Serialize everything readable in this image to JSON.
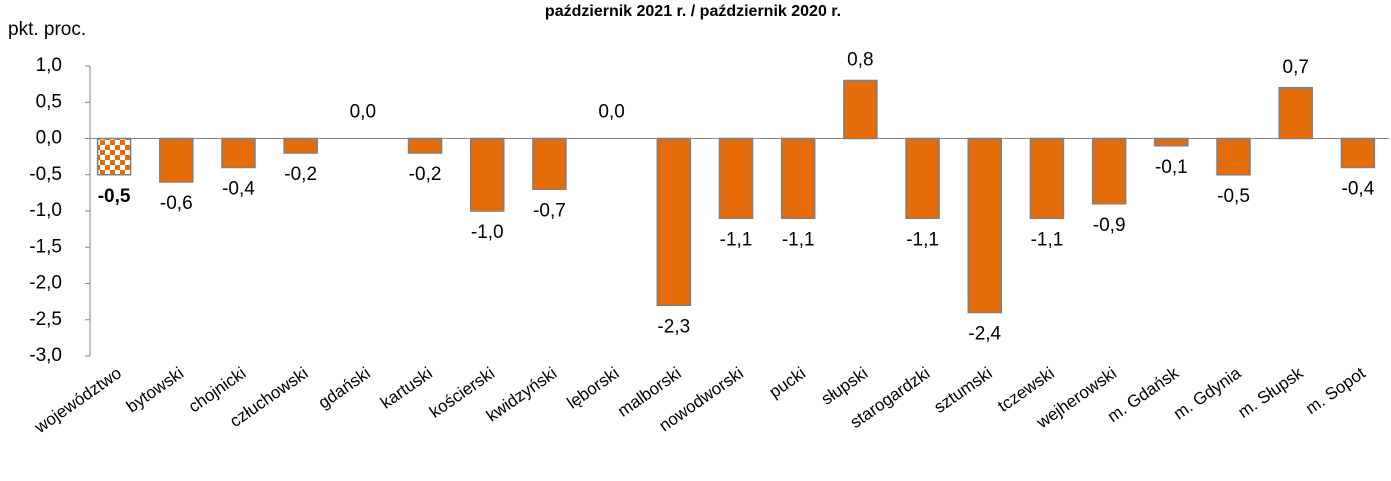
{
  "chart_data": {
    "type": "bar",
    "title": "październik 2021 r. / październik 2020 r.",
    "y_label": "pkt. proc.",
    "categories": [
      "województwo",
      "bytowski",
      "chojnicki",
      "człuchowski",
      "gdański",
      "kartuski",
      "kościerski",
      "kwidzyński",
      "lęborski",
      "malborski",
      "nowodworski",
      "pucki",
      "słupski",
      "starogardzki",
      "sztumski",
      "tczewski",
      "wejherowski",
      "m. Gdańsk",
      "m. Gdynia",
      "m. Słupsk",
      "m. Sopot"
    ],
    "values": [
      -0.5,
      -0.6,
      -0.4,
      -0.2,
      0.0,
      -0.2,
      -1.0,
      -0.7,
      0.0,
      -2.3,
      -1.1,
      -1.1,
      0.8,
      -1.1,
      -2.4,
      -1.1,
      -0.9,
      -0.1,
      -0.5,
      0.7,
      -0.4
    ],
    "value_labels": [
      "-0,5",
      "-0,6",
      "-0,4",
      "-0,2",
      "0,0",
      "-0,2",
      "-1,0",
      "-0,7",
      "0,0",
      "-2,3",
      "-1,1",
      "-1,1",
      "0,8",
      "-1,1",
      "-2,4",
      "-1,1",
      "-0,9",
      "-0,1",
      "-0,5",
      "0,7",
      "-0,4"
    ],
    "color": "#e46c0a",
    "highlight": 0,
    "ylim": [
      -3.0,
      1.0
    ],
    "yticks": [
      {
        "value": -3.0,
        "label": "-3,0"
      },
      {
        "value": -2.5,
        "label": "-2,5"
      },
      {
        "value": -2.0,
        "label": "-2,0"
      },
      {
        "value": -1.5,
        "label": "-1,5"
      },
      {
        "value": -1.0,
        "label": "-1,0"
      },
      {
        "value": -0.5,
        "label": "-0,5"
      },
      {
        "value": 0.0,
        "label": "0,0"
      },
      {
        "value": 0.5,
        "label": "0,5"
      },
      {
        "value": 1.0,
        "label": "1,0"
      }
    ],
    "grid": false
  }
}
